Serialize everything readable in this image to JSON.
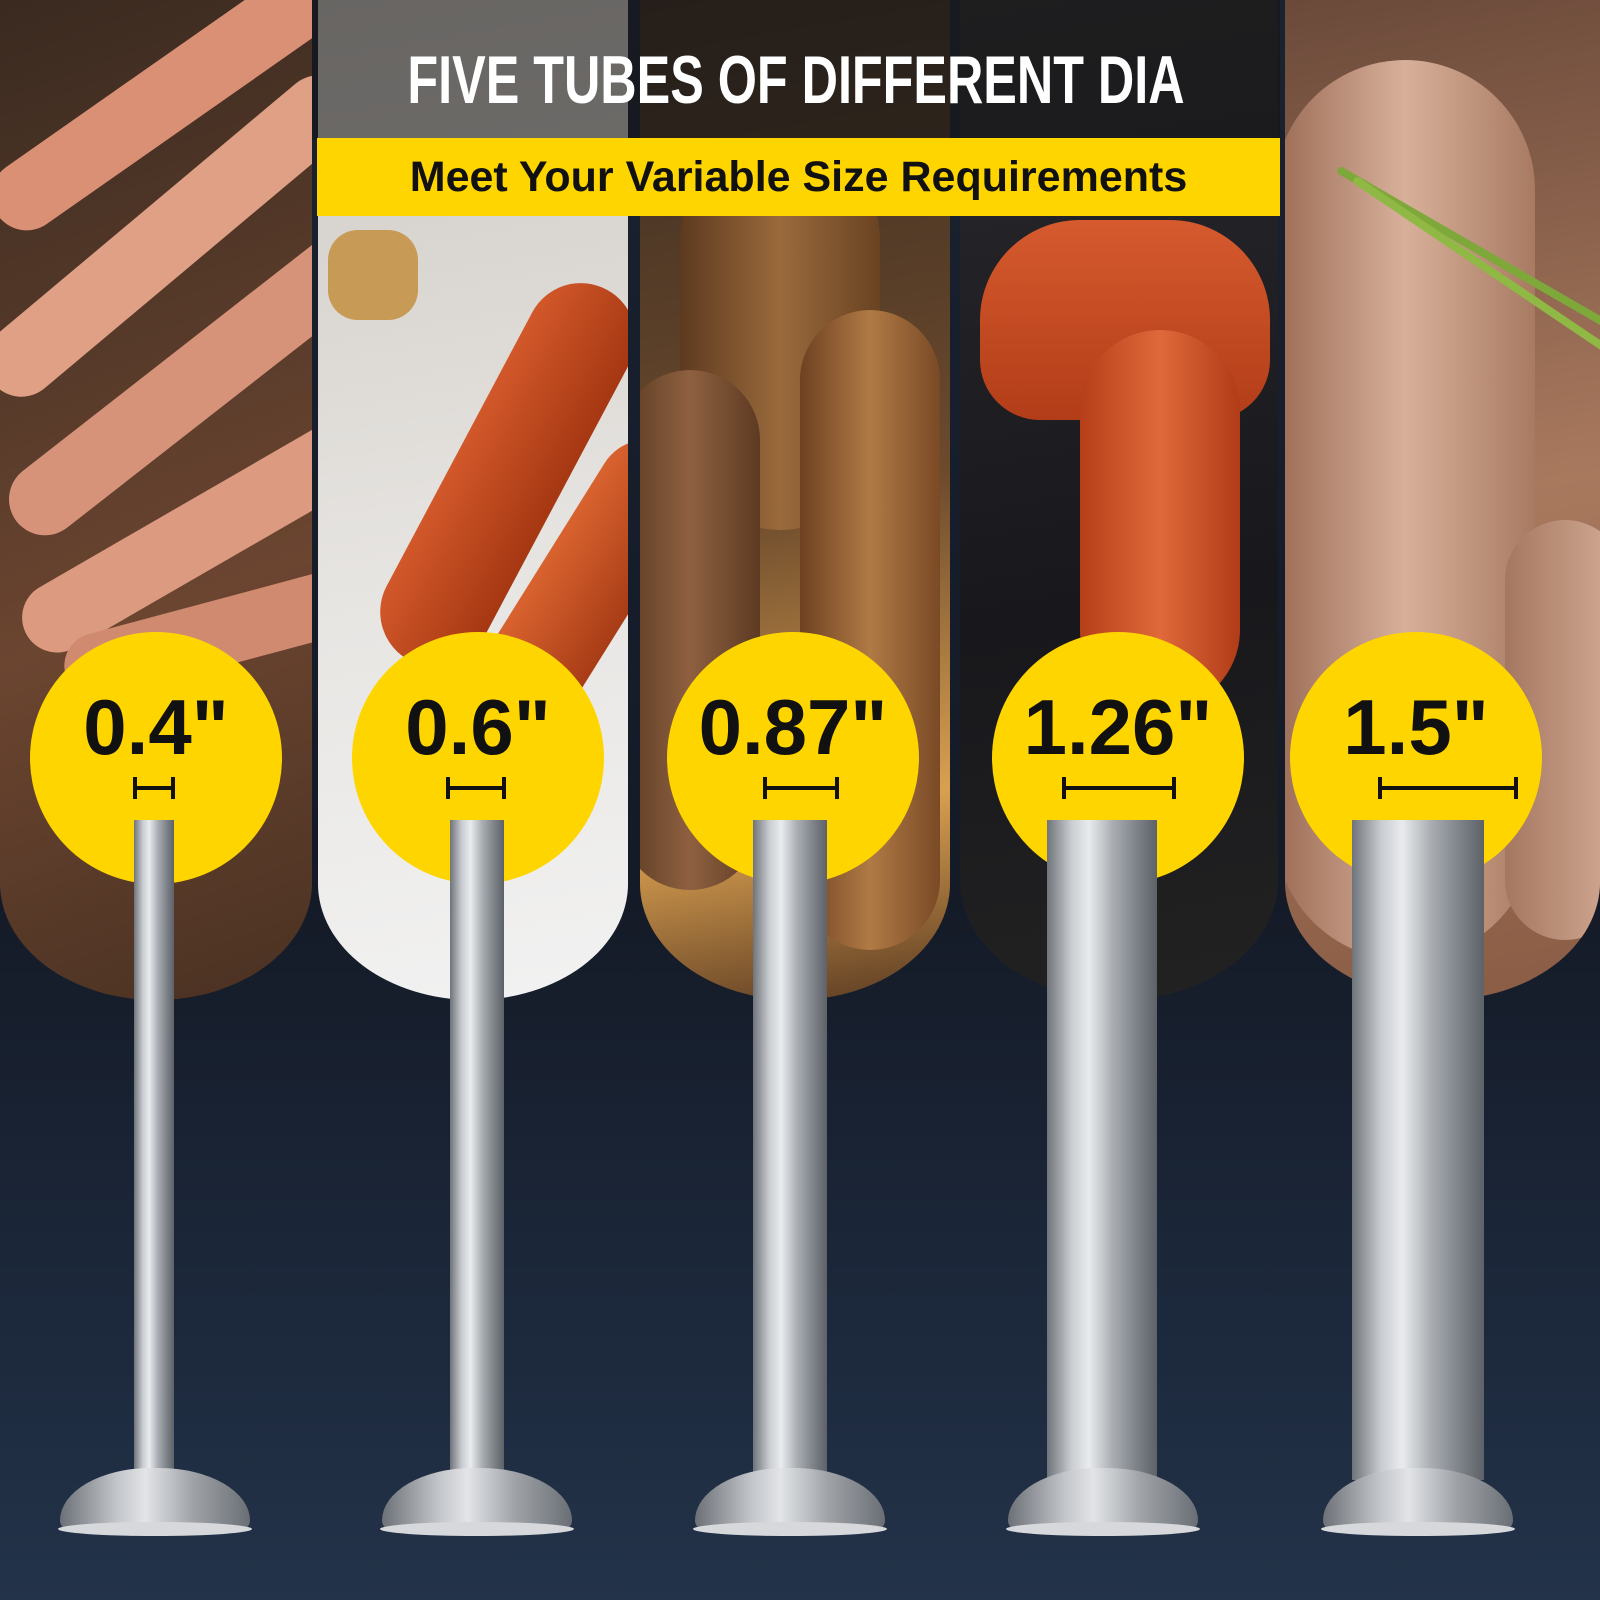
{
  "header": {
    "title": "FIVE TUBES OF DIFFERENT DIA",
    "subtitle": "Meet Your Variable Size Requirements"
  },
  "colors": {
    "accent_yellow": "#FFD500",
    "background": "#161c28",
    "tube_steel": "#b8bcc1"
  },
  "tubes": [
    {
      "diameter": "0.4\""
    },
    {
      "diameter": "0.6\""
    },
    {
      "diameter": "0.87\""
    },
    {
      "diameter": "1.26\""
    },
    {
      "diameter": "1.5\""
    }
  ]
}
